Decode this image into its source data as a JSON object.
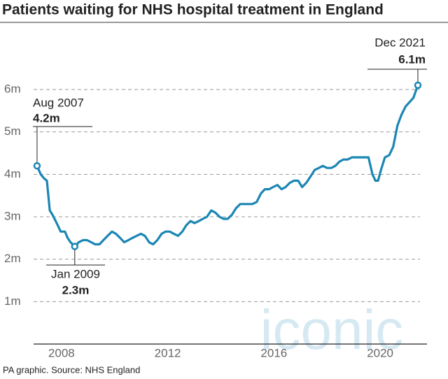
{
  "chart_data": {
    "type": "line",
    "title": "Patients waiting for NHS hospital treatment in England",
    "source": "PA graphic. Source: NHS England",
    "watermark": "iconic",
    "x": [
      2007.58,
      2007.72,
      2007.85,
      2007.95,
      2008.06,
      2008.16,
      2008.32,
      2008.47,
      2008.63,
      2008.73,
      2008.84,
      2009.0,
      2009.15,
      2009.31,
      2009.46,
      2009.62,
      2009.77,
      2009.93,
      2010.08,
      2010.24,
      2010.4,
      2010.55,
      2010.71,
      2010.86,
      2011.02,
      2011.17,
      2011.33,
      2011.49,
      2011.64,
      2011.8,
      2011.95,
      2012.11,
      2012.27,
      2012.42,
      2012.58,
      2012.73,
      2012.89,
      2013.05,
      2013.2,
      2013.36,
      2013.51,
      2013.67,
      2013.82,
      2013.98,
      2014.14,
      2014.29,
      2014.45,
      2014.6,
      2014.76,
      2014.92,
      2015.07,
      2015.23,
      2015.38,
      2015.54,
      2015.69,
      2015.85,
      2016.01,
      2016.16,
      2016.32,
      2016.47,
      2016.63,
      2016.79,
      2016.94,
      2017.1,
      2017.25,
      2017.41,
      2017.56,
      2017.72,
      2017.88,
      2018.03,
      2018.19,
      2018.34,
      2018.5,
      2018.66,
      2018.81,
      2018.97,
      2019.12,
      2019.28,
      2019.44,
      2019.59,
      2019.75,
      2019.9,
      2020.06,
      2020.21,
      2020.32,
      2020.42,
      2020.53,
      2020.68,
      2020.84,
      2020.99,
      2021.15,
      2021.3,
      2021.46,
      2021.75,
      2021.92
    ],
    "series": [
      {
        "color": "#1b86b4",
        "values": [
          4.2,
          4.0,
          3.9,
          3.85,
          3.15,
          3.05,
          2.85,
          2.65,
          2.65,
          2.5,
          2.4,
          2.3,
          2.4,
          2.45,
          2.45,
          2.4,
          2.35,
          2.35,
          2.45,
          2.55,
          2.65,
          2.6,
          2.5,
          2.4,
          2.45,
          2.5,
          2.55,
          2.6,
          2.55,
          2.4,
          2.35,
          2.45,
          2.6,
          2.65,
          2.65,
          2.6,
          2.55,
          2.65,
          2.8,
          2.9,
          2.85,
          2.9,
          2.95,
          3.0,
          3.15,
          3.1,
          3.0,
          2.95,
          2.95,
          3.05,
          3.2,
          3.3,
          3.3,
          3.3,
          3.3,
          3.35,
          3.55,
          3.65,
          3.65,
          3.7,
          3.75,
          3.65,
          3.7,
          3.8,
          3.85,
          3.85,
          3.7,
          3.8,
          3.95,
          4.1,
          4.15,
          4.2,
          4.15,
          4.15,
          4.2,
          4.3,
          4.35,
          4.35,
          4.4,
          4.4,
          4.4,
          4.4,
          4.4,
          4.0,
          3.85,
          3.85,
          4.1,
          4.4,
          4.45,
          4.65,
          5.15,
          5.4,
          5.6,
          5.8,
          6.1
        ]
      }
    ],
    "annotations": [
      {
        "date": "Aug 2007",
        "label": "4.2m"
      },
      {
        "date": "Jan 2009",
        "label": "2.3m"
      },
      {
        "date": "Dec 2021",
        "label": "6.1m"
      }
    ],
    "xlim": [
      2007.45,
      2022.0
    ],
    "xticks": [
      {
        "value": 2008.5,
        "label": "2008"
      },
      {
        "value": 2012.5,
        "label": "2012"
      },
      {
        "value": 2016.5,
        "label": "2016"
      },
      {
        "value": 2020.5,
        "label": "2020"
      }
    ],
    "ylim": [
      0,
      7.45
    ],
    "yticks": [
      {
        "value": 1,
        "label": "1m"
      },
      {
        "value": 2,
        "label": "2m"
      },
      {
        "value": 3,
        "label": "3m"
      },
      {
        "value": 4,
        "label": "4m"
      },
      {
        "value": 5,
        "label": "5m"
      },
      {
        "value": 6,
        "label": "6m"
      }
    ],
    "grid": true
  }
}
